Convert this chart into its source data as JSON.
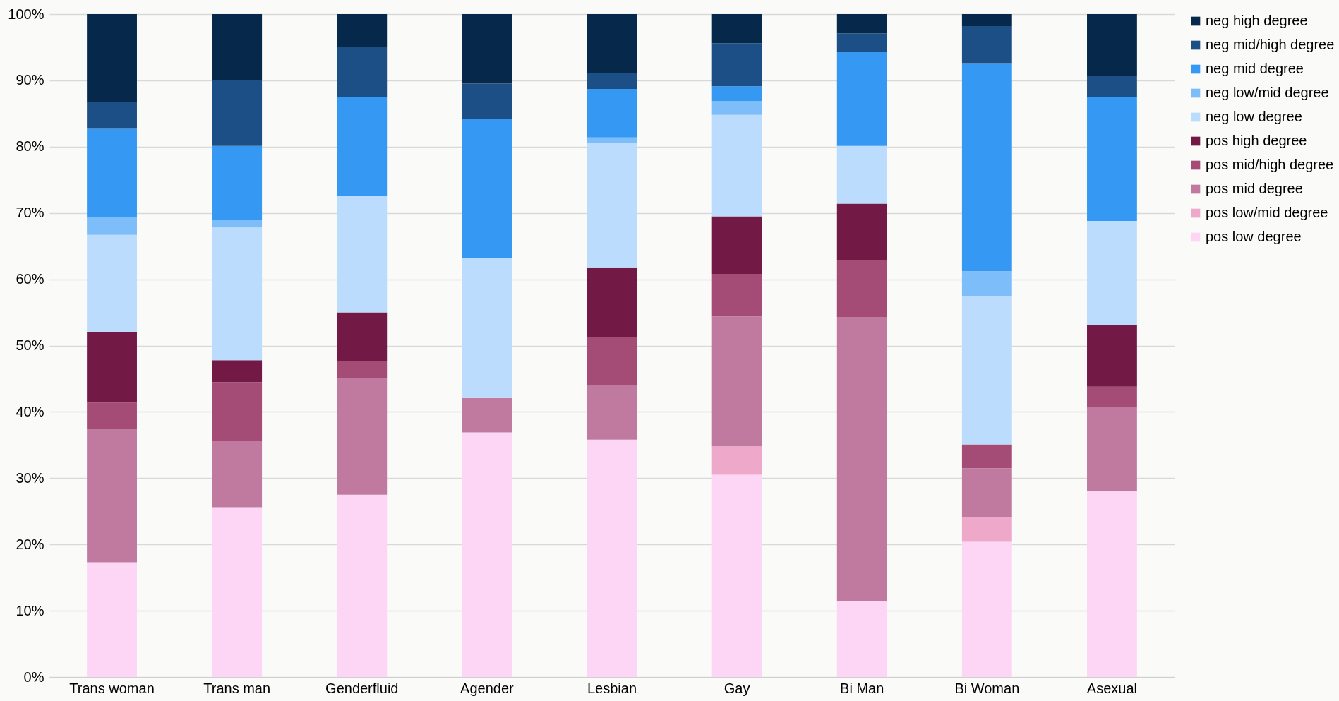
{
  "chart_data": {
    "type": "bar",
    "stacked": true,
    "categories": [
      "Trans woman",
      "Trans man",
      "Genderfluid",
      "Agender",
      "Lesbian",
      "Gay",
      "Bi Man",
      "Bi Woman",
      "Asexual"
    ],
    "series": [
      {
        "name": "pos low degree",
        "color": "#fed6f5",
        "values": [
          17.3,
          25.6,
          27.5,
          36.9,
          35.8,
          30.5,
          11.5,
          20.4,
          28.1
        ]
      },
      {
        "name": "pos low/mid degree",
        "color": "#eea8c9",
        "values": [
          0,
          0,
          0,
          0,
          0,
          4.3,
          0,
          3.7,
          0
        ]
      },
      {
        "name": "pos mid degree",
        "color": "#c07a9f",
        "values": [
          20.1,
          10.0,
          17.6,
          5.2,
          8.2,
          19.6,
          42.8,
          7.4,
          12.6
        ]
      },
      {
        "name": "pos mid/high degree",
        "color": "#a54c76",
        "values": [
          4.0,
          8.9,
          2.5,
          0,
          7.3,
          6.4,
          8.6,
          3.6,
          3.1
        ]
      },
      {
        "name": "pos high degree",
        "color": "#721a45",
        "values": [
          10.6,
          3.3,
          7.4,
          0,
          10.5,
          8.7,
          8.5,
          0,
          9.3
        ]
      },
      {
        "name": "neg low degree",
        "color": "#bbdcfd",
        "values": [
          14.7,
          20.0,
          17.6,
          21.1,
          18.8,
          15.3,
          8.7,
          22.3,
          15.7
        ]
      },
      {
        "name": "neg low/mid degree",
        "color": "#7dbdf9",
        "values": [
          2.7,
          1.2,
          0,
          0,
          0.8,
          2.1,
          0,
          3.8,
          0
        ]
      },
      {
        "name": "neg mid degree",
        "color": "#3599f4",
        "values": [
          13.3,
          11.1,
          14.9,
          21.0,
          7.3,
          2.2,
          14.2,
          31.4,
          18.7
        ]
      },
      {
        "name": "neg mid/high degree",
        "color": "#1b4f85",
        "values": [
          4.0,
          9.9,
          7.5,
          5.3,
          2.4,
          6.5,
          2.8,
          5.6,
          3.2
        ]
      },
      {
        "name": "neg high degree",
        "color": "#06284b",
        "values": [
          13.3,
          10.0,
          5.0,
          10.5,
          8.9,
          4.4,
          2.9,
          1.8,
          9.3
        ]
      }
    ],
    "ylim": [
      0,
      100
    ],
    "yticks": [
      {
        "value": 0,
        "label": "0%"
      },
      {
        "value": 10,
        "label": "10%"
      },
      {
        "value": 20,
        "label": "20%"
      },
      {
        "value": 30,
        "label": "30%"
      },
      {
        "value": 40,
        "label": "40%"
      },
      {
        "value": 50,
        "label": "50%"
      },
      {
        "value": 60,
        "label": "60%"
      },
      {
        "value": 70,
        "label": "70%"
      },
      {
        "value": 80,
        "label": "80%"
      },
      {
        "value": 90,
        "label": "90%"
      },
      {
        "value": 100,
        "label": "100%"
      }
    ],
    "grid": "y",
    "legend": "right"
  }
}
